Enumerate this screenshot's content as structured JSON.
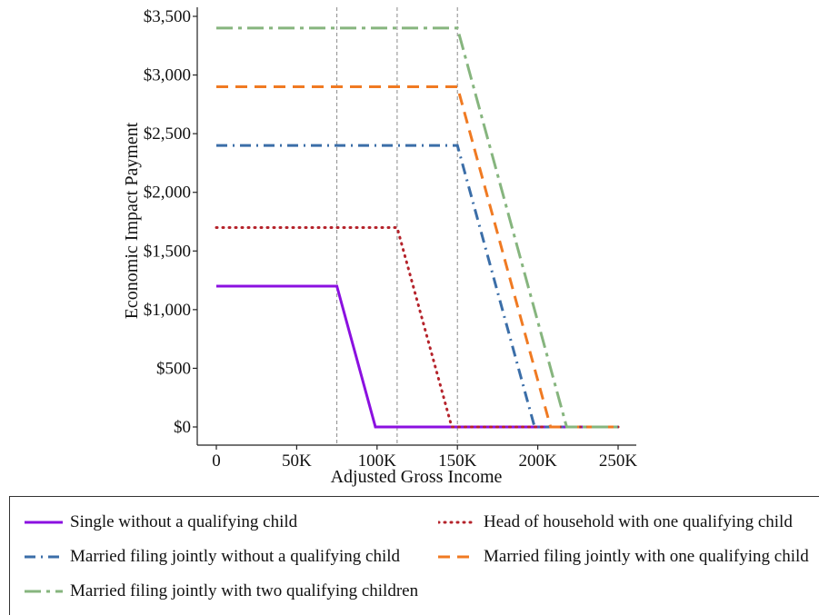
{
  "chart_data": {
    "type": "line",
    "title": "",
    "xlabel": "Adjusted Gross Income",
    "ylabel": "Economic Impact Payment",
    "xlim": [
      0,
      250000
    ],
    "ylim": [
      0,
      3500
    ],
    "x_ticks": [
      0,
      50000,
      100000,
      150000,
      200000,
      250000
    ],
    "x_tick_labels": [
      "0",
      "50K",
      "100K",
      "150K",
      "200K",
      "250K"
    ],
    "y_ticks": [
      0,
      500,
      1000,
      1500,
      2000,
      2500,
      3000,
      3500
    ],
    "y_tick_labels": [
      "$0",
      "$500",
      "$1,000",
      "$1,500",
      "$2,000",
      "$2,500",
      "$3,000",
      "$3,500"
    ],
    "grid": false,
    "vertical_reference_lines": [
      75000,
      112500,
      150000
    ],
    "legend_position": "bottom",
    "series": [
      {
        "name": "Single without a qualifying child",
        "color": "#8b10e0",
        "dash": "solid",
        "x": [
          0,
          75000,
          99000,
          250000
        ],
        "y": [
          1200,
          1200,
          0,
          0
        ]
      },
      {
        "name": "Head of household with one qualifying child",
        "color": "#b5232b",
        "dash": "dotted",
        "x": [
          0,
          112500,
          146500,
          250000
        ],
        "y": [
          1700,
          1700,
          0,
          0
        ]
      },
      {
        "name": "Married filing jointly without a qualifying child",
        "color": "#3b6ea8",
        "dash": "dashdot",
        "x": [
          0,
          150000,
          198000,
          250000
        ],
        "y": [
          2400,
          2400,
          0,
          0
        ]
      },
      {
        "name": "Married filing jointly with one qualifying child",
        "color": "#f07a22",
        "dash": "dashed",
        "x": [
          0,
          150000,
          208000,
          250000
        ],
        "y": [
          2900,
          2900,
          0,
          0
        ]
      },
      {
        "name": "Married filing jointly with two qualifying children",
        "color": "#86b57e",
        "dash": "longdashdot",
        "x": [
          0,
          150000,
          218000,
          250000
        ],
        "y": [
          3400,
          3400,
          0,
          0
        ]
      }
    ]
  }
}
